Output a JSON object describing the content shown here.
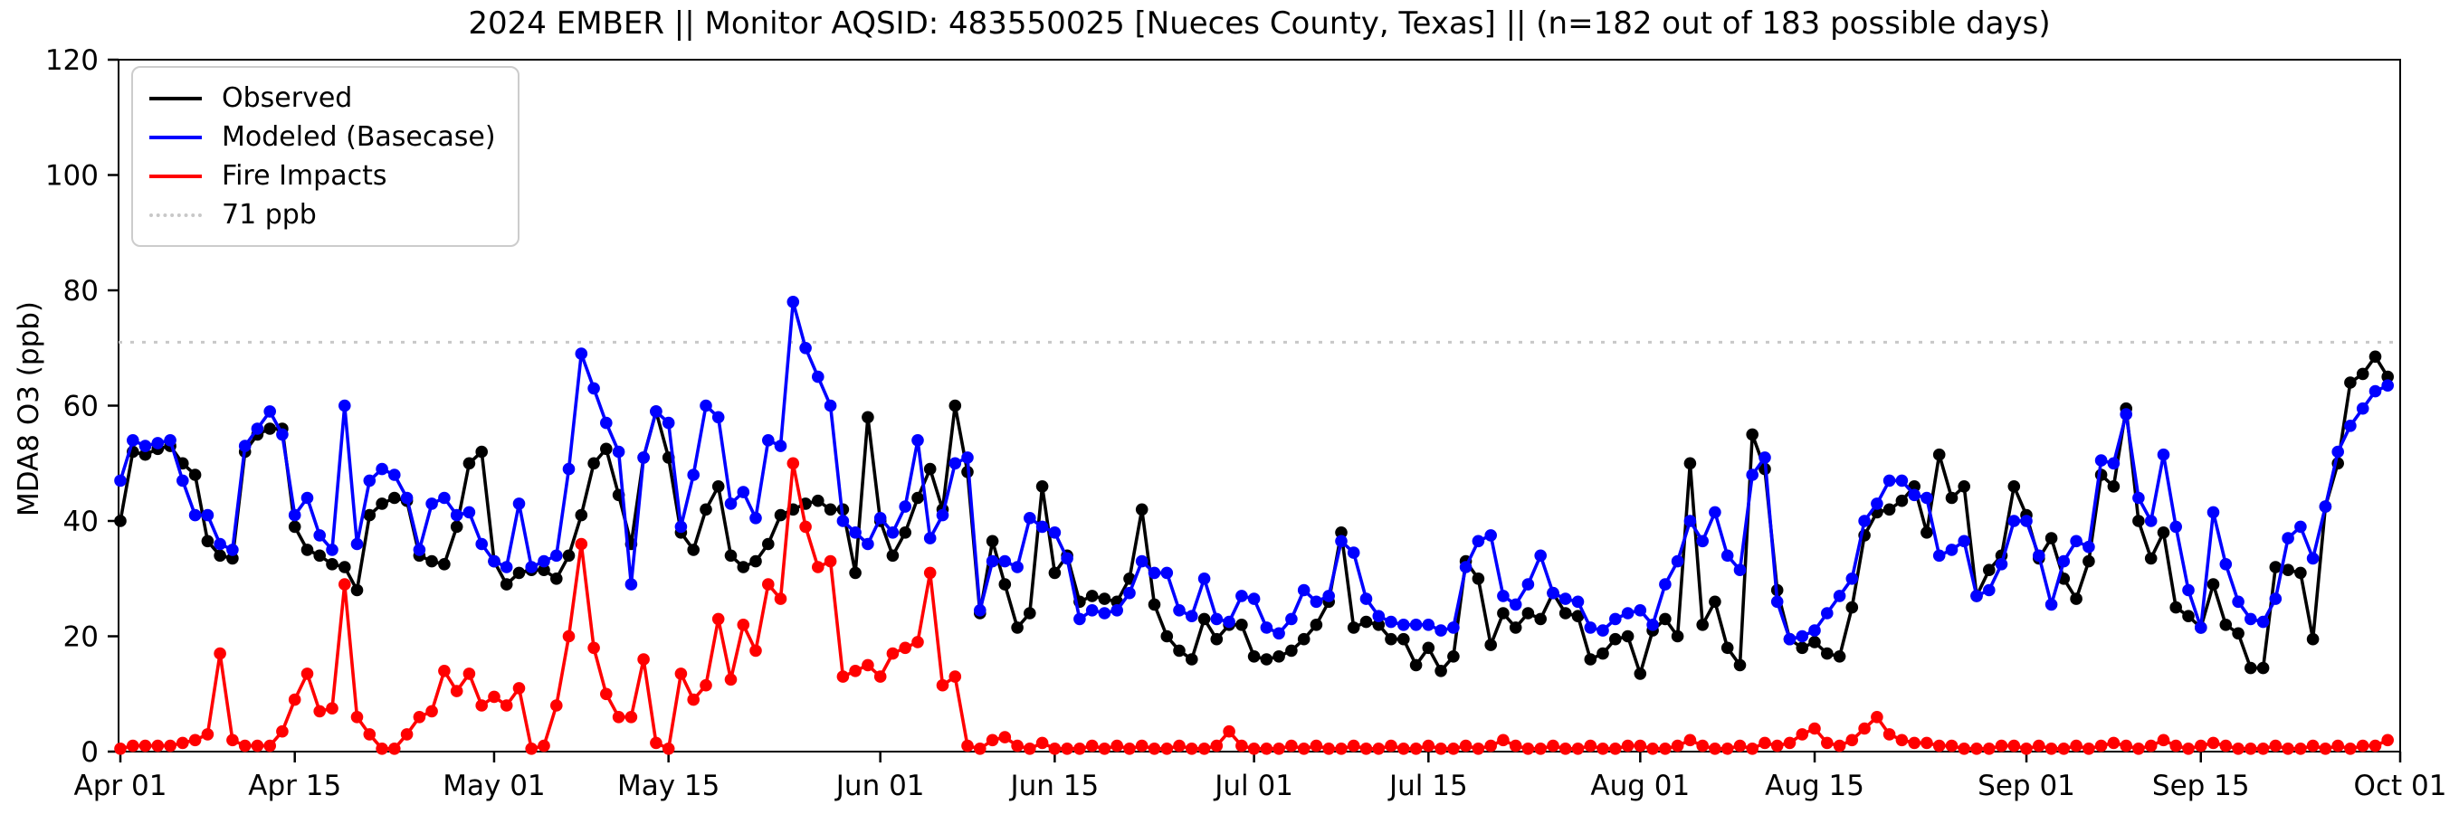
{
  "title": "2024 EMBER || Monitor AQSID: 483550025 [Nueces County, Texas] || (n=182 out of 183 possible days)",
  "y_axis": {
    "label": "MDA8 O3 (ppb)",
    "ticks": [
      0,
      20,
      40,
      60,
      80,
      100,
      120
    ],
    "min": 0,
    "max": 120
  },
  "x_axis": {
    "ticks": [
      {
        "label": "Apr 01",
        "day": 0
      },
      {
        "label": "Apr 15",
        "day": 14
      },
      {
        "label": "May 01",
        "day": 30
      },
      {
        "label": "May 15",
        "day": 44
      },
      {
        "label": "Jun 01",
        "day": 61
      },
      {
        "label": "Jun 15",
        "day": 75
      },
      {
        "label": "Jul 01",
        "day": 91
      },
      {
        "label": "Jul 15",
        "day": 105
      },
      {
        "label": "Aug 01",
        "day": 122
      },
      {
        "label": "Aug 15",
        "day": 136
      },
      {
        "label": "Sep 01",
        "day": 153
      },
      {
        "label": "Sep 15",
        "day": 167
      },
      {
        "label": "Oct 01",
        "day": 183
      }
    ]
  },
  "legend": [
    {
      "label": "Observed",
      "color": "#000000",
      "style": "solid"
    },
    {
      "label": "Modeled (Basecase)",
      "color": "#0000ff",
      "style": "solid"
    },
    {
      "label": "Fire Impacts",
      "color": "#ff0000",
      "style": "solid"
    },
    {
      "label": "71 ppb",
      "color": "#c8c8c8",
      "style": "dotted"
    }
  ],
  "chart_data": {
    "type": "line",
    "title": "2024 EMBER || Monitor AQSID: 483550025 [Nueces County, Texas] || (n=182 out of 183 possible days)",
    "xlabel": "",
    "ylabel": "MDA8 O3 (ppb)",
    "ylim": [
      0,
      120
    ],
    "x_start": "Apr 01",
    "x_end": "Oct 01",
    "x_unit": "day",
    "n_points": 183,
    "grid": false,
    "legend_position": "upper left",
    "threshold_line": {
      "value": 71,
      "label": "71 ppb",
      "color": "#c8c8c8",
      "style": "dotted"
    },
    "series": [
      {
        "name": "Observed",
        "color": "#000000",
        "marker": "circle",
        "values": [
          40,
          52,
          51.5,
          52.5,
          53,
          50,
          48,
          36.5,
          34,
          33.5,
          52,
          55,
          56,
          56,
          39,
          35,
          34,
          32.5,
          32,
          28,
          41,
          43,
          44,
          43.5,
          34,
          33,
          32.5,
          39,
          50,
          52,
          33,
          29,
          31,
          31.5,
          31.5,
          30,
          34,
          41,
          50,
          52.5,
          44.5,
          36,
          51,
          59,
          51,
          38,
          35,
          42,
          46,
          34,
          32,
          33,
          36,
          41,
          42,
          43,
          43.5,
          42,
          42,
          31,
          58,
          40,
          34,
          38,
          44,
          49,
          42,
          60,
          48.5,
          24,
          36.5,
          29,
          21.5,
          24,
          46,
          31,
          34,
          26,
          27,
          26.5,
          26,
          30,
          42,
          25.5,
          20,
          17.5,
          16,
          23,
          19.5,
          22,
          22,
          16.5,
          16,
          16.5,
          17.5,
          19.5,
          22,
          26,
          38,
          21.5,
          22.5,
          22,
          19.5,
          19.5,
          15,
          18,
          14,
          16.5,
          33,
          30,
          18.5,
          24,
          21.5,
          24,
          23,
          27.5,
          24,
          23.5,
          16,
          17,
          19.5,
          20,
          13.5,
          21,
          23,
          20,
          50,
          22,
          26,
          18,
          15,
          55,
          49,
          28,
          19.5,
          18,
          19,
          17,
          16.5,
          25,
          37.5,
          41.5,
          42,
          43.5,
          46,
          38,
          51.5,
          44,
          46,
          27,
          31.5,
          34,
          46,
          41,
          33.5,
          37,
          30,
          26.5,
          33,
          48,
          46,
          59.5,
          40,
          33.5,
          38,
          25,
          23.5,
          21.5,
          29,
          22,
          20.5,
          14.5,
          14.5,
          32,
          31.5,
          31,
          19.5,
          42.5,
          50,
          64,
          65.5,
          68.5,
          65
        ]
      },
      {
        "name": "Modeled (Basecase)",
        "color": "#0000ff",
        "marker": "circle",
        "values": [
          47,
          54,
          53,
          53.5,
          54,
          47,
          41,
          41,
          36,
          35,
          53,
          56,
          59,
          55,
          41,
          44,
          37.5,
          35,
          60,
          36,
          47,
          49,
          48,
          44,
          35,
          43,
          44,
          41,
          41.5,
          36,
          33,
          32,
          43,
          32,
          33,
          34,
          49,
          69,
          63,
          57,
          52,
          29,
          51,
          59,
          57,
          39,
          48,
          60,
          58,
          43,
          45,
          40.5,
          54,
          53,
          78,
          70,
          65,
          60,
          40,
          38,
          36,
          40.5,
          38,
          42.5,
          54,
          37,
          41,
          50,
          51,
          24.5,
          33,
          33,
          32,
          40.5,
          39,
          38,
          33.5,
          23,
          24.5,
          24,
          24.5,
          27.5,
          33,
          31,
          31,
          24.5,
          23.5,
          30,
          23,
          22.5,
          27,
          26.5,
          21.5,
          20.5,
          23,
          28,
          26,
          27,
          36.5,
          34.5,
          26.5,
          23.5,
          22.5,
          22,
          22,
          22,
          21,
          21.5,
          32,
          36.5,
          37.5,
          27,
          25.5,
          29,
          34,
          27.5,
          26.5,
          26,
          21.5,
          21,
          23,
          24,
          24.5,
          22,
          29,
          33,
          40,
          36.5,
          41.5,
          34,
          31.5,
          48,
          51,
          26,
          19.5,
          20,
          21,
          24,
          27,
          30,
          40,
          43,
          47,
          47,
          44.5,
          44,
          34,
          35,
          36.5,
          27,
          28,
          32.5,
          40,
          40,
          34,
          25.5,
          33,
          36.5,
          35.5,
          50.5,
          50,
          58.5,
          44,
          40,
          51.5,
          39,
          28,
          21.5,
          41.5,
          32.5,
          26,
          23,
          22.5,
          26.5,
          37,
          39,
          33.5,
          42.5,
          52,
          56.5,
          59.5,
          62.5,
          63.5
        ]
      },
      {
        "name": "Fire Impacts",
        "color": "#ff0000",
        "marker": "circle",
        "values": [
          0.5,
          1,
          1,
          1,
          1,
          1.5,
          2,
          3,
          17,
          2,
          1,
          1,
          1,
          3.5,
          9,
          13.5,
          7,
          7.5,
          29,
          6,
          3,
          0.5,
          0.5,
          3,
          6,
          7,
          14,
          10.5,
          13.5,
          8,
          9.5,
          8,
          11,
          0.5,
          1,
          8,
          20,
          36,
          18,
          10,
          6,
          6,
          16,
          1.5,
          0.5,
          13.5,
          9,
          11.5,
          23,
          12.5,
          22,
          17.5,
          29,
          26.5,
          50,
          39,
          32,
          33,
          13,
          14,
          15,
          13,
          17,
          18,
          19,
          31,
          11.5,
          13,
          1,
          0.5,
          2,
          2.5,
          1,
          0.5,
          1.5,
          0.5,
          0.5,
          0.5,
          1,
          0.5,
          1,
          0.5,
          1,
          0.5,
          0.5,
          1,
          0.5,
          0.5,
          1,
          3.5,
          1,
          0.5,
          0.5,
          0.5,
          1,
          0.5,
          1,
          0.5,
          0.5,
          1,
          0.5,
          0.5,
          1,
          0.5,
          0.5,
          1,
          0.5,
          0.5,
          1,
          0.5,
          1,
          2,
          1,
          0.5,
          0.5,
          1,
          0.5,
          0.5,
          1,
          0.5,
          0.5,
          1,
          1,
          0.5,
          0.5,
          1,
          2,
          1,
          0.5,
          0.5,
          1,
          0.5,
          1.5,
          1,
          1.5,
          3,
          4,
          1.5,
          1,
          2,
          4,
          6,
          3,
          2,
          1.5,
          1.5,
          1,
          1,
          0.5,
          0.5,
          0.5,
          1,
          1,
          0.5,
          1,
          0.5,
          0.5,
          1,
          0.5,
          1,
          1.5,
          1,
          0.5,
          1,
          2,
          1,
          0.5,
          1,
          1.5,
          1,
          0.5,
          0.5,
          0.5,
          1,
          0.5,
          0.5,
          1,
          0.5,
          1,
          0.5,
          1,
          1,
          2
        ]
      }
    ]
  }
}
